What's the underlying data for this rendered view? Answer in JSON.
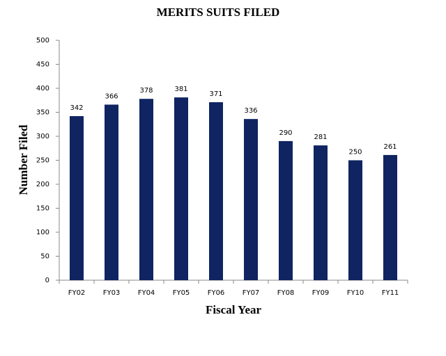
{
  "chart_data": {
    "type": "bar",
    "title": "MERITS SUITS FILED",
    "x_label": "Fiscal Year",
    "y_label": "Number Filed",
    "categories": [
      "FY02",
      "FY03",
      "FY04",
      "FY05",
      "FY06",
      "FY07",
      "FY08",
      "FY09",
      "FY10",
      "FY11"
    ],
    "values": [
      342,
      366,
      378,
      381,
      371,
      336,
      290,
      281,
      250,
      261
    ],
    "color": "#0f2461",
    "ylim": [
      0,
      500
    ],
    "yticks": [
      0,
      50,
      100,
      150,
      200,
      250,
      300,
      350,
      400,
      450,
      500
    ]
  }
}
